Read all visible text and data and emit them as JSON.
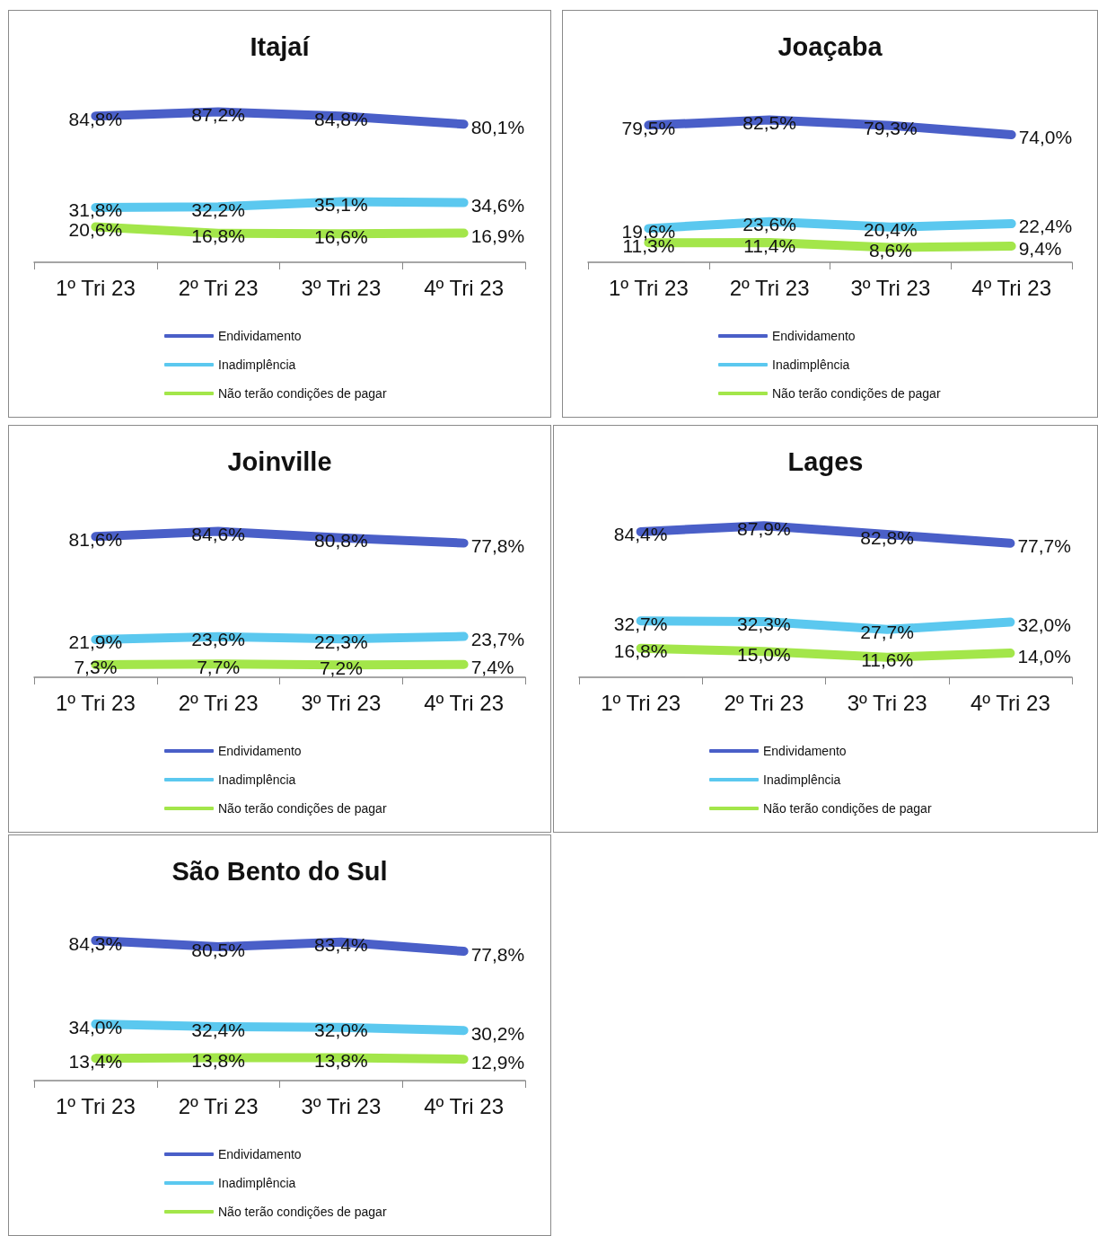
{
  "chart_data": [
    {
      "type": "line",
      "title": "Itajaí",
      "categories": [
        "1º Tri 23",
        "2º Tri 23",
        "3º Tri 23",
        "4º Tri 23"
      ],
      "legend": "bottom",
      "marker": "none",
      "line_style": "solid",
      "series": [
        {
          "name": "Endividamento",
          "color": "#4a5fc8",
          "values": [
            84.8,
            87.2,
            84.8,
            80.1
          ],
          "value_labels": [
            "84,8%",
            "87,2%",
            "84,8%",
            "80,1%"
          ]
        },
        {
          "name": "Inadimplência",
          "color": "#5bc8ef",
          "values": [
            31.8,
            32.2,
            35.1,
            34.6
          ],
          "value_labels": [
            "31,8%",
            "32,2%",
            "35,1%",
            "34,6%"
          ]
        },
        {
          "name": "Não terão condições de pagar",
          "color": "#a3e64a",
          "values": [
            20.6,
            16.8,
            16.6,
            16.9
          ],
          "value_labels": [
            "20,6%",
            "16,8%",
            "16,6%",
            "16,9%"
          ]
        }
      ]
    },
    {
      "type": "line",
      "title": "Joaçaba",
      "categories": [
        "1º Tri 23",
        "2º Tri 23",
        "3º Tri 23",
        "4º Tri 23"
      ],
      "legend": "bottom",
      "marker": "none",
      "line_style": "solid",
      "series": [
        {
          "name": "Endividamento",
          "color": "#4a5fc8",
          "values": [
            79.5,
            82.5,
            79.3,
            74.0
          ],
          "value_labels": [
            "79,5%",
            "82,5%",
            "79,3%",
            "74,0%"
          ]
        },
        {
          "name": "Inadimplência",
          "color": "#5bc8ef",
          "values": [
            19.6,
            23.6,
            20.4,
            22.4
          ],
          "value_labels": [
            "19,6%",
            "23,6%",
            "20,4%",
            "22,4%"
          ]
        },
        {
          "name": "Não terão condições de pagar",
          "color": "#a3e64a",
          "values": [
            11.3,
            11.4,
            8.6,
            9.4
          ],
          "value_labels": [
            "11,3%",
            "11,4%",
            "8,6%",
            "9,4%"
          ]
        }
      ]
    },
    {
      "type": "line",
      "title": "Joinville",
      "categories": [
        "1º Tri 23",
        "2º Tri 23",
        "3º Tri 23",
        "4º Tri 23"
      ],
      "legend": "bottom",
      "marker": "none",
      "line_style": "solid",
      "series": [
        {
          "name": "Endividamento",
          "color": "#4a5fc8",
          "values": [
            81.6,
            84.6,
            80.8,
            77.8
          ],
          "value_labels": [
            "81,6%",
            "84,6%",
            "80,8%",
            "77,8%"
          ]
        },
        {
          "name": "Inadimplência",
          "color": "#5bc8ef",
          "values": [
            21.9,
            23.6,
            22.3,
            23.7
          ],
          "value_labels": [
            "21,9%",
            "23,6%",
            "22,3%",
            "23,7%"
          ]
        },
        {
          "name": "Não terão condições de pagar",
          "color": "#a3e64a",
          "values": [
            7.3,
            7.7,
            7.2,
            7.4
          ],
          "value_labels": [
            "7,3%",
            "7,7%",
            "7,2%",
            "7,4%"
          ]
        }
      ]
    },
    {
      "type": "line",
      "title": "Lages",
      "categories": [
        "1º Tri 23",
        "2º Tri 23",
        "3º Tri 23",
        "4º Tri 23"
      ],
      "legend": "bottom",
      "marker": "none",
      "line_style": "solid",
      "series": [
        {
          "name": "Endividamento",
          "color": "#4a5fc8",
          "values": [
            84.4,
            87.9,
            82.8,
            77.7
          ],
          "value_labels": [
            "84,4%",
            "87,9%",
            "82,8%",
            "77,7%"
          ]
        },
        {
          "name": "Inadimplência",
          "color": "#5bc8ef",
          "values": [
            32.7,
            32.3,
            27.7,
            32.0
          ],
          "value_labels": [
            "32,7%",
            "32,3%",
            "27,7%",
            "32,0%"
          ]
        },
        {
          "name": "Não terão condições de pagar",
          "color": "#a3e64a",
          "values": [
            16.8,
            15.0,
            11.6,
            14.0
          ],
          "value_labels": [
            "16,8%",
            "15,0%",
            "11,6%",
            "14,0%"
          ]
        }
      ]
    },
    {
      "type": "line",
      "title": "São Bento do Sul",
      "categories": [
        "1º Tri 23",
        "2º Tri 23",
        "3º Tri 23",
        "4º Tri 23"
      ],
      "legend": "bottom",
      "marker": "none",
      "line_style": "solid",
      "series": [
        {
          "name": "Endividamento",
          "color": "#4a5fc8",
          "values": [
            84.3,
            80.5,
            83.4,
            77.8
          ],
          "value_labels": [
            "84,3%",
            "80,5%",
            "83,4%",
            "77,8%"
          ]
        },
        {
          "name": "Inadimplência",
          "color": "#5bc8ef",
          "values": [
            34.0,
            32.4,
            32.0,
            30.2
          ],
          "value_labels": [
            "34,0%",
            "32,4%",
            "32,0%",
            "30,2%"
          ]
        },
        {
          "name": "Não terão condições de pagar",
          "color": "#a3e64a",
          "values": [
            13.4,
            13.8,
            13.8,
            12.9
          ],
          "value_labels": [
            "13,4%",
            "13,8%",
            "13,8%",
            "12,9%"
          ]
        }
      ]
    }
  ]
}
